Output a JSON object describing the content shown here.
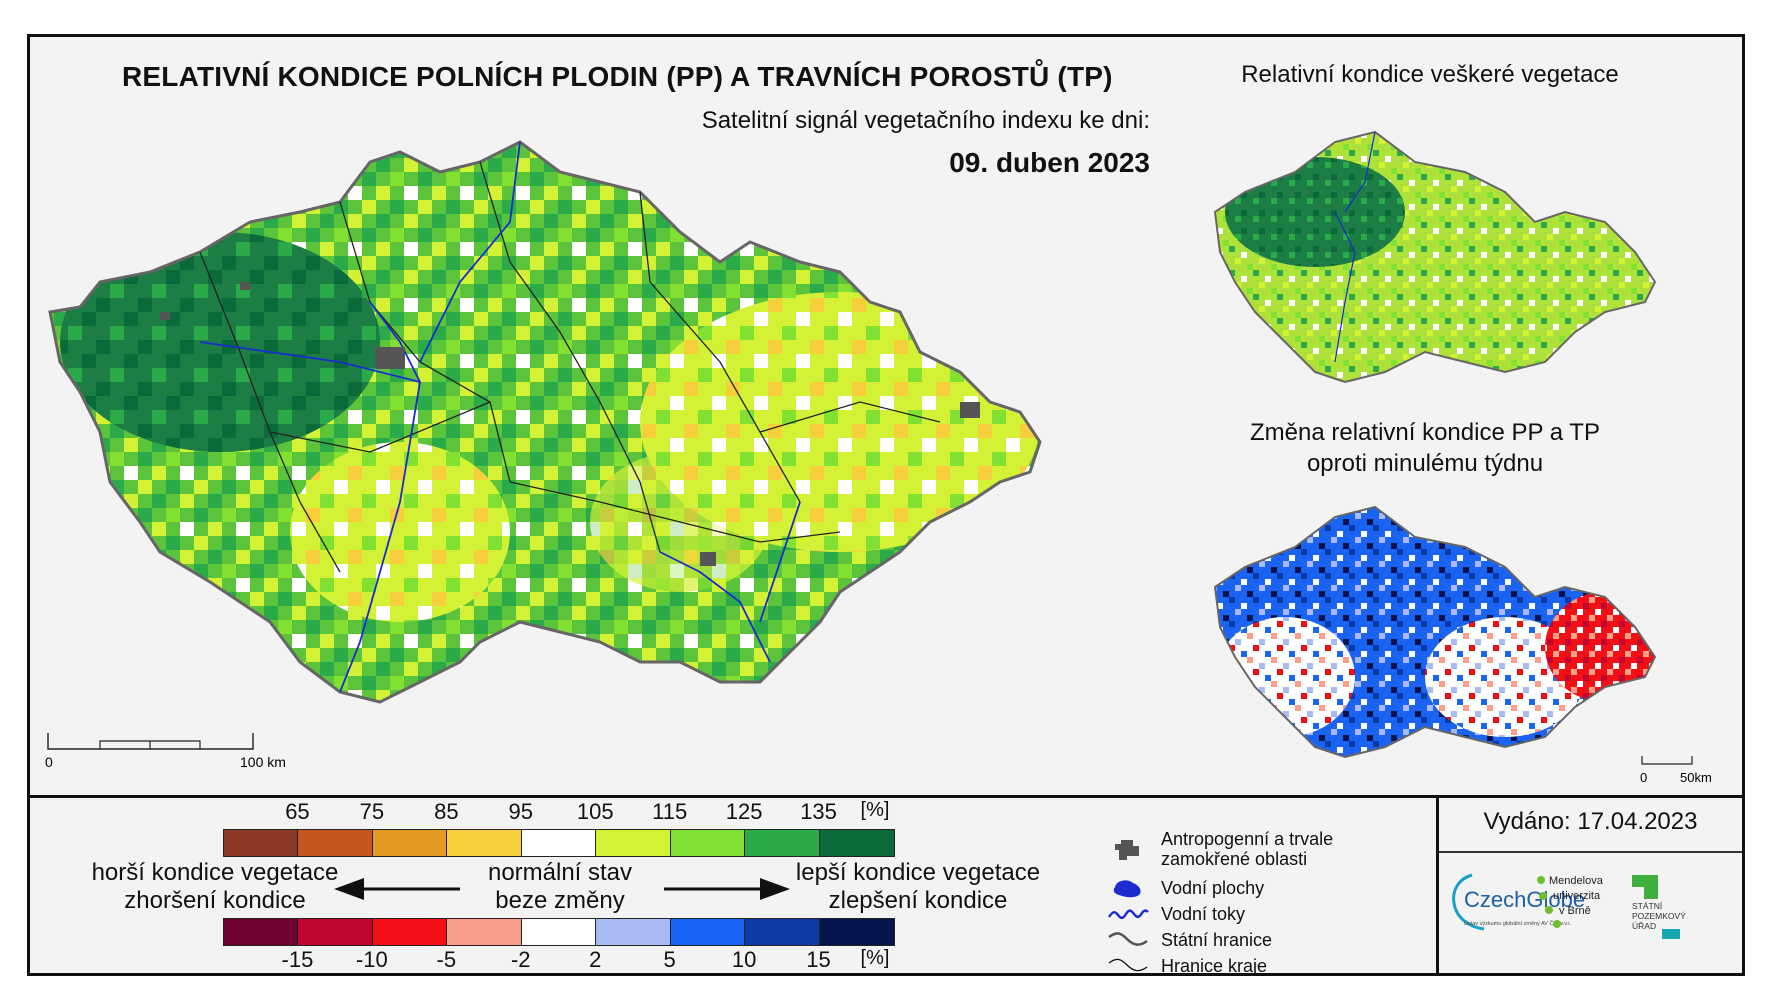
{
  "main_title": "RELATIVNÍ KONDICE POLNÍCH PLODIN (PP) A TRAVNÍCH POROSTŮ (TP)",
  "subtitle": "Satelitní signál vegetačního indexu ke dni:",
  "date": "09. duben 2023",
  "right_top_title": "Relativní kondice veškeré vegetace",
  "right_bottom_title_line1": "Změna relativní kondice PP a TP",
  "right_bottom_title_line2": "oproti minulému týdnu",
  "scale_main": {
    "zero": "0",
    "end": "100 km"
  },
  "scale_small": {
    "zero": "0",
    "end": "50km"
  },
  "issued": "Vydáno: 17.04.2023",
  "legend_condition": {
    "ticks": [
      "65",
      "75",
      "85",
      "95",
      "105",
      "115",
      "125",
      "135"
    ],
    "unit": "[%]",
    "colors": [
      "#8b3a26",
      "#c4561f",
      "#e39a21",
      "#f7cf3c",
      "#ffffff",
      "#d3f235",
      "#82e032",
      "#2aaa48",
      "#0b6a3a"
    ]
  },
  "legend_change": {
    "ticks": [
      "-15",
      "-10",
      "-5",
      "-2",
      "2",
      "5",
      "10",
      "15"
    ],
    "unit": "[%]",
    "colors": [
      "#6e0232",
      "#c00531",
      "#f20f15",
      "#f9a08a",
      "#ffffff",
      "#a9b9f4",
      "#1b63f2",
      "#0c3aa7",
      "#06144e"
    ]
  },
  "labels": {
    "worse_line1": "horší kondice vegetace",
    "worse_line2": "zhoršení kondice",
    "normal_line1": "normální stav",
    "normal_line2": "beze změny",
    "better_line1": "lepší kondice vegetace",
    "better_line2": "zlepšení kondice"
  },
  "map_legend": [
    {
      "icon": "anthropogenic-area-icon",
      "text": "Antropogenní a trvale zamokřené oblasti"
    },
    {
      "icon": "water-body-icon",
      "text": "Vodní plochy"
    },
    {
      "icon": "watercourse-icon",
      "text": "Vodní toky"
    },
    {
      "icon": "state-border-icon",
      "text": "Státní hranice"
    },
    {
      "icon": "region-border-icon",
      "text": "Hranice kraje"
    }
  ],
  "logos": {
    "czechglobe": "CzechGlobe",
    "czechglobe_sub": "Ústav výzkumu globální změny AV ČR, v.v.i.",
    "mendel_line1": "Mendelova",
    "mendel_line2": "univerzita",
    "mendel_line3": "v Brně",
    "spu_line1": "STÁTNÍ",
    "spu_line2": "POZEMKOVÝ",
    "spu_line3": "ÚŘAD"
  }
}
